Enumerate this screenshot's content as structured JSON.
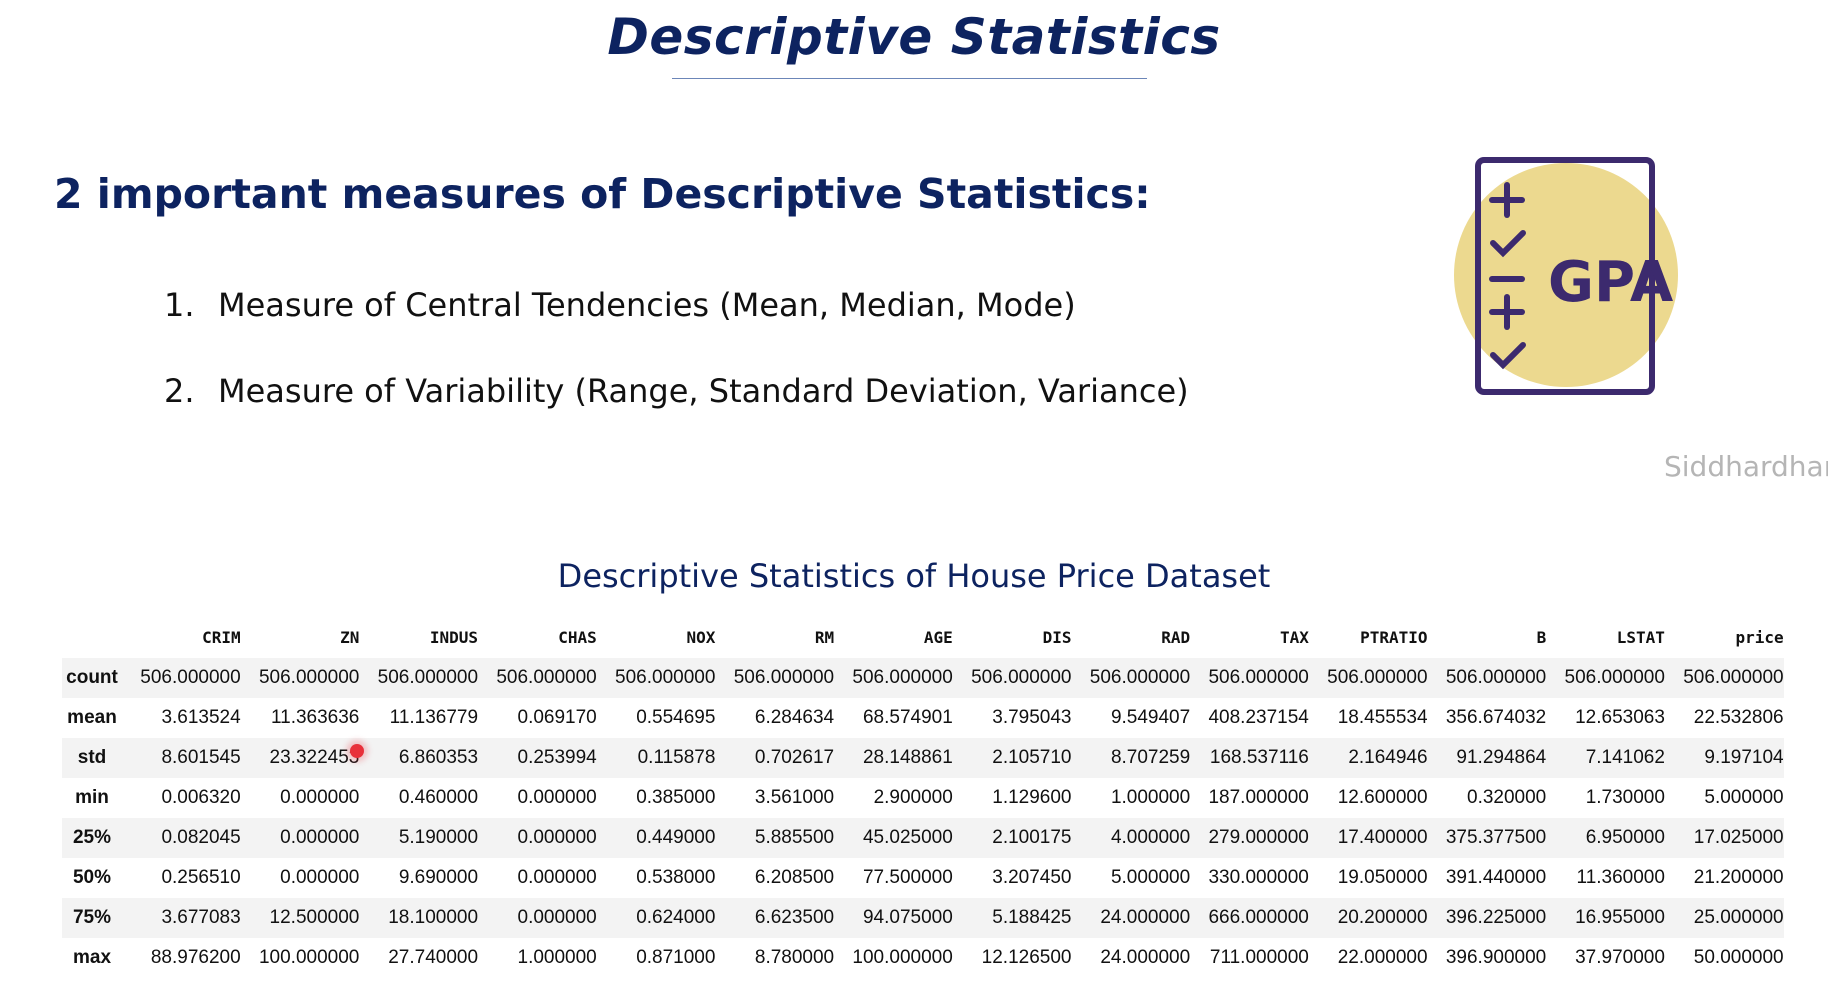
{
  "slide": {
    "title": "Descriptive Statistics",
    "subtitle": "2 important measures of Descriptive Statistics:",
    "items": [
      {
        "num": "1.",
        "text": "Measure of Central Tendencies (Mean, Median, Mode)"
      },
      {
        "num": "2.",
        "text": "Measure of Variability (Range, Standard Deviation, Variance)"
      }
    ],
    "watermark": "Siddhardhan",
    "gpa_icon": {
      "label": "GPA",
      "circle_color": "#ecd98f",
      "stroke_color": "#3c2a6e"
    }
  },
  "table": {
    "caption": "Descriptive Statistics of House Price Dataset",
    "columns": [
      "CRIM",
      "ZN",
      "INDUS",
      "CHAS",
      "NOX",
      "RM",
      "AGE",
      "DIS",
      "RAD",
      "TAX",
      "PTRATIO",
      "B",
      "LSTAT",
      "price"
    ],
    "rows": [
      {
        "label": "count",
        "values": [
          "506.000000",
          "506.000000",
          "506.000000",
          "506.000000",
          "506.000000",
          "506.000000",
          "506.000000",
          "506.000000",
          "506.000000",
          "506.000000",
          "506.000000",
          "506.000000",
          "506.000000",
          "506.000000"
        ]
      },
      {
        "label": "mean",
        "values": [
          "3.613524",
          "11.363636",
          "11.136779",
          "0.069170",
          "0.554695",
          "6.284634",
          "68.574901",
          "3.795043",
          "9.549407",
          "408.237154",
          "18.455534",
          "356.674032",
          "12.653063",
          "22.532806"
        ]
      },
      {
        "label": "std",
        "values": [
          "8.601545",
          "23.322453",
          "6.860353",
          "0.253994",
          "0.115878",
          "0.702617",
          "28.148861",
          "2.105710",
          "8.707259",
          "168.537116",
          "2.164946",
          "91.294864",
          "7.141062",
          "9.197104"
        ]
      },
      {
        "label": "min",
        "values": [
          "0.006320",
          "0.000000",
          "0.460000",
          "0.000000",
          "0.385000",
          "3.561000",
          "2.900000",
          "1.129600",
          "1.000000",
          "187.000000",
          "12.600000",
          "0.320000",
          "1.730000",
          "5.000000"
        ]
      },
      {
        "label": "25%",
        "values": [
          "0.082045",
          "0.000000",
          "5.190000",
          "0.000000",
          "0.449000",
          "5.885500",
          "45.025000",
          "2.100175",
          "4.000000",
          "279.000000",
          "17.400000",
          "375.377500",
          "6.950000",
          "17.025000"
        ]
      },
      {
        "label": "50%",
        "values": [
          "0.256510",
          "0.000000",
          "9.690000",
          "0.000000",
          "0.538000",
          "6.208500",
          "77.500000",
          "3.207450",
          "5.000000",
          "330.000000",
          "19.050000",
          "391.440000",
          "11.360000",
          "21.200000"
        ]
      },
      {
        "label": "75%",
        "values": [
          "3.677083",
          "12.500000",
          "18.100000",
          "0.000000",
          "0.624000",
          "6.623500",
          "94.075000",
          "5.188425",
          "24.000000",
          "666.000000",
          "20.200000",
          "396.225000",
          "16.955000",
          "25.000000"
        ]
      },
      {
        "label": "max",
        "values": [
          "88.976200",
          "100.000000",
          "27.740000",
          "1.000000",
          "0.871000",
          "8.780000",
          "100.000000",
          "12.126500",
          "24.000000",
          "711.000000",
          "22.000000",
          "396.900000",
          "37.970000",
          "50.000000"
        ]
      }
    ]
  }
}
